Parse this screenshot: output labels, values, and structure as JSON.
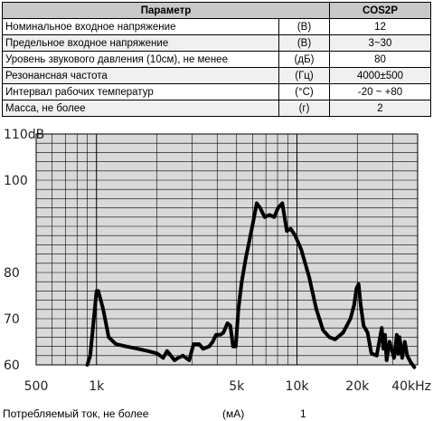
{
  "spec_table": {
    "header": {
      "param": "Параметр",
      "model": "COS2P"
    },
    "rows": [
      {
        "name": "Номинальное входное напряжение",
        "unit": "(В)",
        "value": "12"
      },
      {
        "name": "Предельное входное напряжение",
        "unit": "(В)",
        "value": "3~30"
      },
      {
        "name": "Уровень звукового давления (10см), не менее",
        "unit": "(дБ)",
        "value": "80"
      },
      {
        "name": "Резонансная частота",
        "unit": "(Гц)",
        "value": "4000±500"
      },
      {
        "name": "Интервал рабочих температур",
        "unit": "(°С)",
        "value": "-20 ~ +80"
      },
      {
        "name": "Масса, не более",
        "unit": "(г)",
        "value": "2"
      }
    ]
  },
  "chart_data": {
    "type": "line",
    "xscale": "log",
    "xlim": [
      500,
      40000
    ],
    "ylim": [
      60,
      110
    ],
    "y_ticks": [
      {
        "value": 110,
        "label": "110dB"
      },
      {
        "value": 100,
        "label": "100"
      },
      {
        "value": 80,
        "label": "80"
      },
      {
        "value": 70,
        "label": "70"
      },
      {
        "value": 60,
        "label": "60"
      }
    ],
    "x_ticks": [
      {
        "value": 500,
        "label": "500"
      },
      {
        "value": 1000,
        "label": "1k"
      },
      {
        "value": 5000,
        "label": "5k"
      },
      {
        "value": 10000,
        "label": "10k"
      },
      {
        "value": 20000,
        "label": "20k"
      },
      {
        "value": 40000,
        "label": "40kHz"
      }
    ],
    "grid": true,
    "line_color": "#000000",
    "series": [
      {
        "x": [
          900,
          930,
          980,
          1000,
          1020,
          1080,
          1150,
          1250,
          1400,
          1600,
          1800,
          2000,
          2150,
          2250,
          2350,
          2450,
          2550,
          2700,
          2900,
          3050,
          3250,
          3400,
          3650,
          3800,
          3950,
          4150,
          4300,
          4500,
          4650,
          4800,
          4950,
          5100,
          5300,
          5550,
          5800,
          6050,
          6300,
          6550,
          6900,
          7300,
          7700,
          8050,
          8450,
          8900,
          9300,
          9800,
          10500,
          11500,
          12500,
          13500,
          14500,
          15500,
          17000,
          18500,
          19300,
          19800,
          20300,
          20800,
          21500,
          22500,
          23500,
          25000,
          26500,
          27000,
          27500,
          28000,
          29000,
          30500,
          31500,
          32000,
          32500,
          33500,
          34500,
          35500,
          37000,
          38500
        ],
        "values": [
          60,
          62,
          72,
          76,
          76,
          72,
          66,
          64.5,
          64,
          63.5,
          63,
          62.5,
          61.5,
          63,
          62,
          61,
          61.5,
          62,
          61,
          64.5,
          64.5,
          63.5,
          64,
          65,
          66.5,
          66.5,
          67,
          69,
          68.5,
          64,
          64,
          72,
          78,
          83,
          87,
          91,
          95,
          94,
          92,
          92.5,
          92,
          94,
          95,
          89,
          89.5,
          88,
          85,
          79,
          72,
          67.5,
          66,
          65.5,
          67,
          70,
          73,
          76.5,
          77.5,
          73,
          68.5,
          67,
          62.5,
          62,
          68,
          63.5,
          66.5,
          61,
          65,
          61.5,
          66.5,
          62.5,
          66,
          61.5,
          65,
          62,
          60.5,
          59.5
        ]
      }
    ]
  },
  "footer": {
    "current_label": "Потребляемый ток, не более",
    "current_unit": "(мА)",
    "current_value": "1"
  }
}
